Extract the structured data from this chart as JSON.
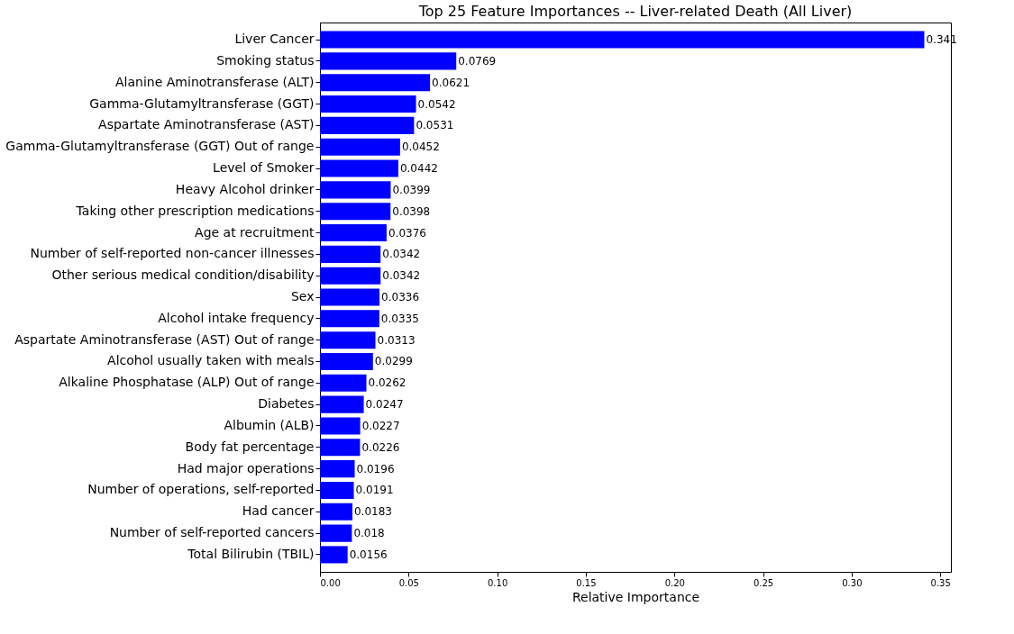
{
  "chart_data": {
    "type": "bar",
    "orientation": "horizontal",
    "title": "Top 25 Feature Importances -- Liver-related Death (All Liver)",
    "xlabel": "Relative Importance",
    "categories": [
      "Liver Cancer",
      "Smoking status",
      "Alanine Aminotransferase (ALT)",
      "Gamma-Glutamyltransferase (GGT)",
      "Aspartate Aminotransferase (AST)",
      "Gamma-Glutamyltransferase (GGT) Out of range",
      "Level of Smoker",
      "Heavy Alcohol drinker",
      "Taking other prescription medications",
      "Age at recruitment",
      "Number of self-reported non-cancer illnesses",
      "Other serious medical condition/disability",
      "Sex",
      "Alcohol intake frequency",
      "Aspartate Aminotransferase (AST) Out of range",
      "Alcohol usually taken with meals",
      "Alkaline Phosphatase (ALP) Out of range",
      "Diabetes",
      "Albumin (ALB)",
      "Body fat percentage",
      "Had major operations",
      "Number of operations, self-reported",
      "Had cancer",
      "Number of self-reported cancers",
      "Total Bilirubin (TBIL)"
    ],
    "values": [
      0.341,
      0.0769,
      0.0621,
      0.0542,
      0.0531,
      0.0452,
      0.0442,
      0.0399,
      0.0398,
      0.0376,
      0.0342,
      0.0342,
      0.0336,
      0.0335,
      0.0313,
      0.0299,
      0.0262,
      0.0247,
      0.0227,
      0.0226,
      0.0196,
      0.0191,
      0.0183,
      0.018,
      0.0156
    ],
    "color": "#0000ff",
    "data_labels": true,
    "xlim": [
      0,
      0.356
    ],
    "xticks": [
      {
        "value": 0,
        "label": "0.00"
      },
      {
        "value": 0.05,
        "label": "0.05"
      },
      {
        "value": 0.1,
        "label": "0.10"
      },
      {
        "value": 0.15,
        "label": "0.15"
      },
      {
        "value": 0.2,
        "label": "0.20"
      },
      {
        "value": 0.25,
        "label": "0.25"
      },
      {
        "value": 0.3,
        "label": "0.30"
      },
      {
        "value": 0.35,
        "label": "0.35"
      }
    ]
  }
}
